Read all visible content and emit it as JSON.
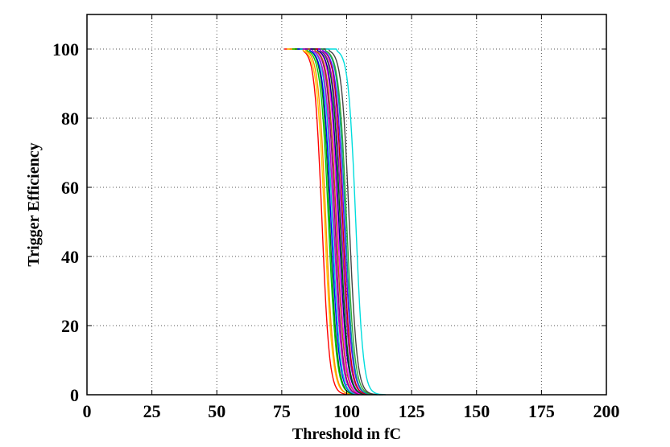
{
  "chart_data": {
    "type": "line",
    "title": "",
    "xlabel": "Threshold in fC",
    "ylabel": "Trigger Efficiency",
    "xlim": [
      0,
      200
    ],
    "ylim": [
      0,
      110
    ],
    "xticks": [
      0,
      25,
      50,
      75,
      100,
      125,
      150,
      175,
      200
    ],
    "yticks": [
      0,
      20,
      40,
      60,
      80,
      100
    ],
    "xtick_labels": [
      "0",
      "25",
      "50",
      "75",
      "100",
      "125",
      "150",
      "175",
      "200"
    ],
    "ytick_labels": [
      "0",
      "20",
      "40",
      "60",
      "80",
      "100"
    ],
    "grid": true,
    "legend": "none",
    "series_model": "efficiency curves: 100 from x_start, dropping to 0 around the midpoint",
    "series": [
      {
        "color": "#ff0000",
        "x_start": 76,
        "mid": 90.5,
        "width": 2.4,
        "x_end": 100
      },
      {
        "color": "#ffcc00",
        "x_start": 77,
        "mid": 91.5,
        "width": 2.6,
        "x_end": 101
      },
      {
        "color": "#ff8800",
        "x_start": 78,
        "mid": 92.0,
        "width": 2.5,
        "x_end": 102
      },
      {
        "color": "#00cc00",
        "x_start": 79,
        "mid": 93.0,
        "width": 2.6,
        "x_end": 103
      },
      {
        "color": "#008800",
        "x_start": 80,
        "mid": 93.5,
        "width": 2.5,
        "x_end": 104
      },
      {
        "color": "#0000ff",
        "x_start": 81,
        "mid": 94.0,
        "width": 2.6,
        "x_end": 104
      },
      {
        "color": "#00cccc",
        "x_start": 82,
        "mid": 94.5,
        "width": 2.5,
        "x_end": 105
      },
      {
        "color": "#cc00cc",
        "x_start": 83,
        "mid": 95.0,
        "width": 2.6,
        "x_end": 105
      },
      {
        "color": "#880088",
        "x_start": 84,
        "mid": 95.5,
        "width": 2.5,
        "x_end": 106
      },
      {
        "color": "#aa6600",
        "x_start": 85,
        "mid": 96.0,
        "width": 2.6,
        "x_end": 106
      },
      {
        "color": "#ff00ff",
        "x_start": 86,
        "mid": 96.5,
        "width": 2.5,
        "x_end": 107
      },
      {
        "color": "#000088",
        "x_start": 86,
        "mid": 97.0,
        "width": 2.6,
        "x_end": 108
      },
      {
        "color": "#006600",
        "x_start": 87,
        "mid": 97.5,
        "width": 2.5,
        "x_end": 109
      },
      {
        "color": "#9900cc",
        "x_start": 88,
        "mid": 98.0,
        "width": 2.6,
        "x_end": 110
      },
      {
        "color": "#cc0000",
        "x_start": 88,
        "mid": 98.5,
        "width": 2.5,
        "x_end": 110
      },
      {
        "color": "#6600ff",
        "x_start": 89,
        "mid": 99.0,
        "width": 2.6,
        "x_end": 111
      },
      {
        "color": "#009999",
        "x_start": 90,
        "mid": 99.5,
        "width": 2.5,
        "x_end": 112
      },
      {
        "color": "#33aa33",
        "x_start": 90,
        "mid": 100.0,
        "width": 2.6,
        "x_end": 113
      },
      {
        "color": "#444444",
        "x_start": 91,
        "mid": 101.0,
        "width": 2.5,
        "x_end": 114
      },
      {
        "color": "#00dddd",
        "x_start": 92,
        "mid": 103.5,
        "width": 2.4,
        "x_end": 115
      }
    ]
  }
}
